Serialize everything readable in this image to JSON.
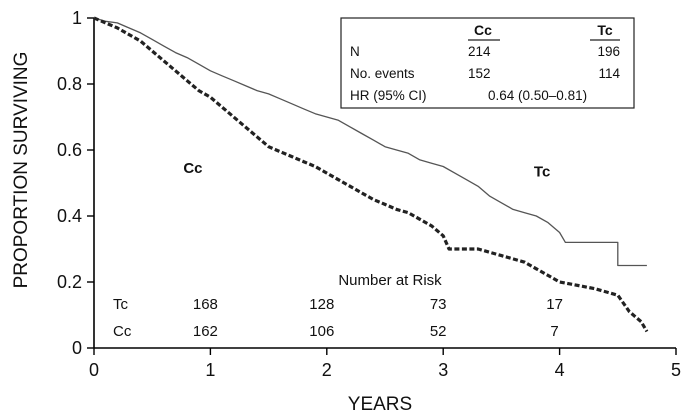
{
  "chart_data": {
    "type": "line",
    "subtype": "kaplan-meier",
    "xlabel": "YEARS",
    "ylabel": "PROPORTION SURVIVING",
    "xlim": [
      0,
      5
    ],
    "ylim": [
      0,
      1
    ],
    "x_ticks": [
      "0",
      "1",
      "2",
      "3",
      "4",
      "5"
    ],
    "y_ticks": [
      "0",
      "0.2",
      "0.4",
      "0.6",
      "0.8",
      "1"
    ],
    "grid": false,
    "series": [
      {
        "name": "Tc",
        "label": "Tc",
        "style": "solid",
        "color": "#555555",
        "points": [
          [
            0,
            1.0
          ],
          [
            0.1,
            0.99
          ],
          [
            0.2,
            0.985
          ],
          [
            0.3,
            0.97
          ],
          [
            0.4,
            0.955
          ],
          [
            0.5,
            0.935
          ],
          [
            0.6,
            0.915
          ],
          [
            0.7,
            0.895
          ],
          [
            0.8,
            0.88
          ],
          [
            0.9,
            0.86
          ],
          [
            1.0,
            0.84
          ],
          [
            1.1,
            0.825
          ],
          [
            1.2,
            0.81
          ],
          [
            1.3,
            0.795
          ],
          [
            1.4,
            0.78
          ],
          [
            1.5,
            0.77
          ],
          [
            1.6,
            0.755
          ],
          [
            1.7,
            0.74
          ],
          [
            1.8,
            0.725
          ],
          [
            1.9,
            0.71
          ],
          [
            2.0,
            0.7
          ],
          [
            2.1,
            0.69
          ],
          [
            2.2,
            0.67
          ],
          [
            2.3,
            0.65
          ],
          [
            2.4,
            0.63
          ],
          [
            2.5,
            0.61
          ],
          [
            2.6,
            0.6
          ],
          [
            2.7,
            0.59
          ],
          [
            2.8,
            0.57
          ],
          [
            2.9,
            0.56
          ],
          [
            3.0,
            0.55
          ],
          [
            3.1,
            0.53
          ],
          [
            3.2,
            0.51
          ],
          [
            3.3,
            0.49
          ],
          [
            3.4,
            0.46
          ],
          [
            3.5,
            0.44
          ],
          [
            3.6,
            0.42
          ],
          [
            3.7,
            0.41
          ],
          [
            3.8,
            0.4
          ],
          [
            3.9,
            0.38
          ],
          [
            4.0,
            0.35
          ],
          [
            4.05,
            0.32
          ],
          [
            4.5,
            0.32
          ],
          [
            4.5,
            0.25
          ],
          [
            4.75,
            0.25
          ]
        ]
      },
      {
        "name": "Cc",
        "label": "Cc",
        "style": "dotted",
        "color": "#222222",
        "points": [
          [
            0,
            1.0
          ],
          [
            0.1,
            0.985
          ],
          [
            0.2,
            0.97
          ],
          [
            0.3,
            0.95
          ],
          [
            0.4,
            0.93
          ],
          [
            0.5,
            0.9
          ],
          [
            0.6,
            0.87
          ],
          [
            0.7,
            0.84
          ],
          [
            0.8,
            0.81
          ],
          [
            0.9,
            0.78
          ],
          [
            1.0,
            0.76
          ],
          [
            1.1,
            0.73
          ],
          [
            1.2,
            0.7
          ],
          [
            1.3,
            0.67
          ],
          [
            1.4,
            0.64
          ],
          [
            1.5,
            0.61
          ],
          [
            1.6,
            0.595
          ],
          [
            1.7,
            0.58
          ],
          [
            1.8,
            0.565
          ],
          [
            1.9,
            0.55
          ],
          [
            2.0,
            0.53
          ],
          [
            2.1,
            0.51
          ],
          [
            2.2,
            0.49
          ],
          [
            2.3,
            0.47
          ],
          [
            2.4,
            0.45
          ],
          [
            2.5,
            0.435
          ],
          [
            2.6,
            0.42
          ],
          [
            2.7,
            0.41
          ],
          [
            2.8,
            0.39
          ],
          [
            2.9,
            0.37
          ],
          [
            3.0,
            0.34
          ],
          [
            3.05,
            0.3
          ],
          [
            3.3,
            0.3
          ],
          [
            3.5,
            0.28
          ],
          [
            3.7,
            0.26
          ],
          [
            3.8,
            0.24
          ],
          [
            3.9,
            0.22
          ],
          [
            4.0,
            0.2
          ],
          [
            4.3,
            0.18
          ],
          [
            4.5,
            0.16
          ],
          [
            4.6,
            0.11
          ],
          [
            4.7,
            0.08
          ],
          [
            4.75,
            0.05
          ]
        ]
      }
    ],
    "curve_labels": [
      {
        "text": "Cc",
        "x": 0.85,
        "y": 0.53
      },
      {
        "text": "Tc",
        "x": 3.85,
        "y": 0.52
      }
    ],
    "legend_table": {
      "columns": [
        "",
        "Cc",
        "Tc"
      ],
      "rows": [
        {
          "label": "N",
          "cc": "214",
          "tc": "196"
        },
        {
          "label": "No. events",
          "cc": "152",
          "tc": "114"
        },
        {
          "label": "HR (95% CI)",
          "value": "0.64 (0.50–0.81)"
        }
      ],
      "placement": "top-right"
    },
    "risk_table": {
      "title": "Number at Risk",
      "time_points": [
        1,
        2,
        3,
        4
      ],
      "rows": [
        {
          "group": "Tc",
          "counts": [
            "168",
            "128",
            "73",
            "17"
          ]
        },
        {
          "group": "Cc",
          "counts": [
            "162",
            "106",
            "52",
            "7"
          ]
        }
      ]
    }
  }
}
